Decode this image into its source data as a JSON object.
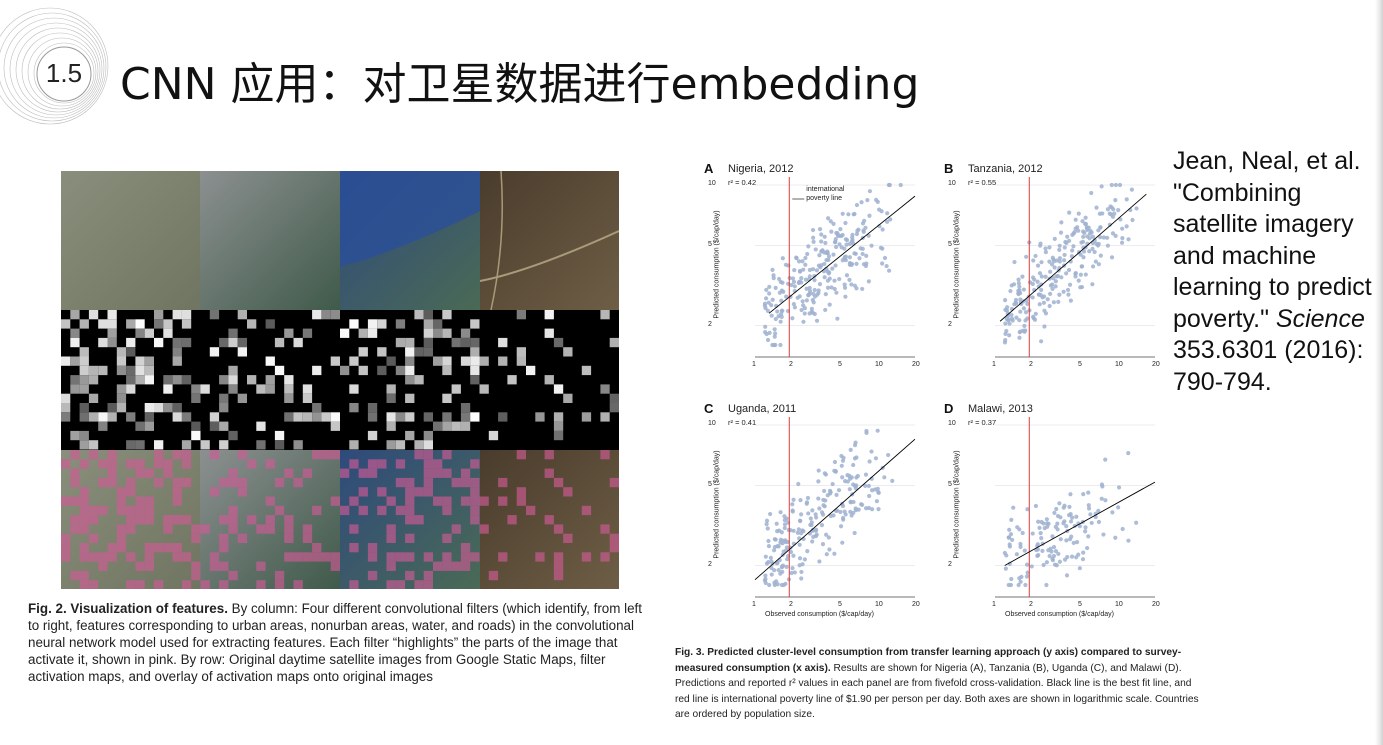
{
  "slide": {
    "section_number": "1.5",
    "title": "CNN 应用：对卫星数据进行embedding"
  },
  "fig2": {
    "caption_bold": "Fig. 2. Visualization of features.",
    "caption_text": " By column: Four different convolutional filters (which identify, from left to right, features corresponding to urban areas, nonurban areas, water, and roads) in the convolutional neural network model used for extracting features. Each filter “highlights” the parts of the image that activate it, shown in pink. By row: Original daytime satellite images from Google Static Maps, filter activation maps, and overlay of activation maps onto original images"
  },
  "fig3": {
    "caption_bold": "Fig. 3. Predicted cluster-level consumption from transfer learning approach (y axis) compared to survey-measured consumption (x axis).",
    "caption_text": " Results are shown for Nigeria (A), Tanzania (B), Uganda (C), and Malawi (D). Predictions and reported r² values in each panel are from fivefold cross-validation. Black line is the best fit line, and red line is international poverty line of $1.90 per person per day. Both axes are shown in logarithmic scale. Countries are ordered by population size.",
    "annotation": [
      "international",
      "poverty line"
    ],
    "ylabel": "Predicted consumption ($/cap/day)",
    "xlabel": "Observed consumption ($/cap/day)",
    "x_ticks": [
      "1",
      "2",
      "5",
      "10",
      "20"
    ],
    "y_ticks": [
      "10",
      "5",
      "2"
    ]
  },
  "chart_data": [
    {
      "type": "scatter",
      "letter": "A",
      "title": "Nigeria, 2012",
      "r2": "r² = 0.42",
      "xscale": "log",
      "yscale": "log",
      "xlim": [
        1,
        20
      ],
      "ylim": [
        1.6,
        10
      ],
      "poverty_line_x": 1.9,
      "fit": [
        [
          1.3,
          2.3
        ],
        [
          20,
          8.8
        ]
      ]
    },
    {
      "type": "scatter",
      "letter": "B",
      "title": "Tanzania, 2012",
      "r2": "r² = 0.55",
      "xscale": "log",
      "yscale": "log",
      "xlim": [
        1,
        20
      ],
      "ylim": [
        1.6,
        10
      ],
      "poverty_line_x": 1.9,
      "fit": [
        [
          1.1,
          2.1
        ],
        [
          17,
          9
        ]
      ]
    },
    {
      "type": "scatter",
      "letter": "C",
      "title": "Uganda, 2011",
      "r2": "r² = 0.41",
      "xscale": "log",
      "yscale": "log",
      "xlim": [
        1,
        20
      ],
      "ylim": [
        1.6,
        10
      ],
      "poverty_line_x": 1.9,
      "fit": [
        [
          0.8,
          1.7
        ],
        [
          20,
          8.5
        ]
      ]
    },
    {
      "type": "scatter",
      "letter": "D",
      "title": "Malawi, 2013",
      "r2": "r² = 0.37",
      "xscale": "log",
      "yscale": "log",
      "xlim": [
        1,
        20
      ],
      "ylim": [
        1.6,
        10
      ],
      "poverty_line_x": 1.9,
      "fit": [
        [
          1.2,
          2.0
        ],
        [
          20,
          5.2
        ]
      ]
    }
  ],
  "citation": {
    "text": "Jean, Neal, et al. \"Combining satellite imagery and machine learning to predict poverty.\" ",
    "journal": "Science",
    "tail": " 353.6301 (2016): 790-794."
  },
  "colors": {
    "points": "#9fb2d0",
    "poverty_line": "#e03a3a",
    "fit_line": "#000000",
    "overlay_pink": "#d05a95"
  }
}
